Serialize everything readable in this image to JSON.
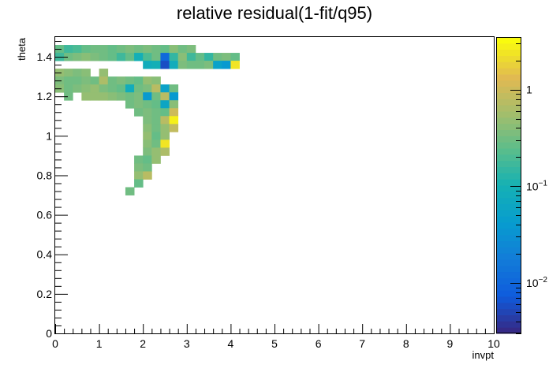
{
  "chart_data": {
    "type": "heatmap",
    "title": "relative residual(1-fit/q95)",
    "xlabel": "invpt",
    "ylabel": "theta",
    "xlim": [
      0,
      10
    ],
    "ylim": [
      0,
      1.5
    ],
    "x_ticks": [
      "0",
      "1",
      "2",
      "3",
      "4",
      "5",
      "6",
      "7",
      "8",
      "9",
      "10"
    ],
    "y_ticks": [
      "0",
      "0.2",
      "0.4",
      "0.6",
      "0.8",
      "1",
      "1.2",
      "1.4"
    ],
    "color_scale": "log",
    "zlim": [
      0.003,
      3.5
    ],
    "colorbar_ticks": [
      {
        "value": 0.01,
        "base": "10",
        "exp": "−2"
      },
      {
        "value": 0.1,
        "base": "10",
        "exp": "−1"
      },
      {
        "value": 1,
        "base": "1",
        "exp": ""
      }
    ],
    "cell_size": {
      "dx": 0.2,
      "dy": 0.04
    },
    "cells": [
      [
        0.0,
        1.42,
        0.25
      ],
      [
        0.2,
        1.42,
        0.18
      ],
      [
        0.4,
        1.42,
        0.2
      ],
      [
        0.6,
        1.42,
        0.25
      ],
      [
        0.8,
        1.42,
        0.3
      ],
      [
        1.0,
        1.42,
        0.3
      ],
      [
        1.2,
        1.42,
        0.25
      ],
      [
        1.4,
        1.42,
        0.3
      ],
      [
        1.6,
        1.42,
        0.35
      ],
      [
        1.8,
        1.42,
        0.3
      ],
      [
        2.0,
        1.42,
        0.35
      ],
      [
        2.2,
        1.42,
        0.3
      ],
      [
        2.4,
        1.42,
        0.25
      ],
      [
        2.6,
        1.42,
        0.4
      ],
      [
        2.8,
        1.42,
        0.3
      ],
      [
        3.0,
        1.42,
        0.35
      ],
      [
        0.0,
        1.38,
        0.18
      ],
      [
        0.2,
        1.38,
        0.3
      ],
      [
        0.4,
        1.38,
        0.35
      ],
      [
        0.6,
        1.38,
        0.4
      ],
      [
        0.8,
        1.38,
        0.35
      ],
      [
        1.0,
        1.38,
        0.3
      ],
      [
        1.2,
        1.38,
        0.25
      ],
      [
        1.4,
        1.38,
        0.18
      ],
      [
        1.6,
        1.38,
        0.25
      ],
      [
        1.8,
        1.38,
        0.1
      ],
      [
        2.0,
        1.38,
        0.2
      ],
      [
        2.2,
        1.38,
        0.3
      ],
      [
        2.4,
        1.38,
        0.01
      ],
      [
        2.6,
        1.38,
        0.15
      ],
      [
        2.8,
        1.38,
        0.4
      ],
      [
        3.0,
        1.38,
        0.18
      ],
      [
        3.2,
        1.38,
        0.25
      ],
      [
        3.4,
        1.38,
        0.15
      ],
      [
        3.6,
        1.38,
        0.3
      ],
      [
        3.8,
        1.38,
        0.35
      ],
      [
        4.0,
        1.38,
        0.25
      ],
      [
        2.0,
        1.34,
        0.08
      ],
      [
        2.2,
        1.34,
        0.1
      ],
      [
        2.4,
        1.34,
        0.006
      ],
      [
        2.6,
        1.34,
        0.08
      ],
      [
        2.8,
        1.34,
        0.35
      ],
      [
        3.0,
        1.34,
        0.3
      ],
      [
        3.2,
        1.34,
        0.3
      ],
      [
        3.4,
        1.34,
        0.35
      ],
      [
        3.6,
        1.34,
        0.05
      ],
      [
        3.8,
        1.34,
        0.04
      ],
      [
        4.0,
        1.34,
        2.5
      ],
      [
        0.0,
        1.3,
        0.5
      ],
      [
        0.2,
        1.3,
        0.4
      ],
      [
        0.4,
        1.3,
        0.35
      ],
      [
        0.6,
        1.3,
        0.4
      ],
      [
        1.0,
        1.3,
        0.5
      ],
      [
        0.0,
        1.26,
        0.35
      ],
      [
        0.2,
        1.26,
        0.3
      ],
      [
        0.4,
        1.26,
        0.3
      ],
      [
        0.6,
        1.26,
        0.35
      ],
      [
        0.8,
        1.26,
        0.3
      ],
      [
        1.0,
        1.26,
        0.6
      ],
      [
        1.2,
        1.26,
        0.3
      ],
      [
        1.4,
        1.26,
        0.35
      ],
      [
        1.6,
        1.26,
        0.3
      ],
      [
        1.8,
        1.26,
        0.25
      ],
      [
        2.0,
        1.26,
        0.5
      ],
      [
        2.2,
        1.26,
        0.4
      ],
      [
        0.0,
        1.22,
        0.4
      ],
      [
        0.2,
        1.22,
        0.3
      ],
      [
        0.4,
        1.22,
        0.35
      ],
      [
        0.6,
        1.22,
        0.4
      ],
      [
        0.8,
        1.22,
        0.45
      ],
      [
        1.0,
        1.22,
        0.35
      ],
      [
        1.2,
        1.22,
        0.3
      ],
      [
        1.4,
        1.22,
        0.25
      ],
      [
        1.6,
        1.22,
        0.08
      ],
      [
        1.8,
        1.22,
        0.3
      ],
      [
        2.0,
        1.22,
        0.35
      ],
      [
        2.2,
        1.22,
        0.7
      ],
      [
        2.4,
        1.22,
        0.05
      ],
      [
        2.6,
        1.22,
        0.3
      ],
      [
        0.2,
        1.18,
        0.3
      ],
      [
        0.6,
        1.18,
        0.5
      ],
      [
        0.8,
        1.18,
        0.45
      ],
      [
        1.0,
        1.18,
        0.5
      ],
      [
        1.2,
        1.18,
        0.4
      ],
      [
        1.4,
        1.18,
        0.35
      ],
      [
        1.6,
        1.18,
        0.3
      ],
      [
        1.8,
        1.18,
        0.35
      ],
      [
        2.0,
        1.18,
        0.04
      ],
      [
        2.2,
        1.18,
        0.3
      ],
      [
        2.4,
        1.18,
        0.8
      ],
      [
        2.6,
        1.18,
        0.04
      ],
      [
        1.6,
        1.14,
        0.3
      ],
      [
        1.8,
        1.14,
        0.35
      ],
      [
        2.0,
        1.14,
        0.3
      ],
      [
        2.2,
        1.14,
        0.25
      ],
      [
        2.4,
        1.14,
        0.06
      ],
      [
        2.6,
        1.14,
        0.4
      ],
      [
        1.8,
        1.1,
        0.3
      ],
      [
        2.0,
        1.1,
        0.35
      ],
      [
        2.2,
        1.1,
        0.3
      ],
      [
        2.4,
        1.1,
        0.25
      ],
      [
        2.6,
        1.1,
        1.0
      ],
      [
        2.0,
        1.06,
        0.35
      ],
      [
        2.2,
        1.06,
        0.3
      ],
      [
        2.4,
        1.06,
        0.8
      ],
      [
        2.6,
        1.06,
        3.0
      ],
      [
        2.0,
        1.02,
        0.4
      ],
      [
        2.2,
        1.02,
        0.3
      ],
      [
        2.4,
        1.02,
        0.5
      ],
      [
        2.6,
        1.02,
        0.9
      ],
      [
        2.0,
        0.98,
        0.45
      ],
      [
        2.2,
        0.98,
        0.25
      ],
      [
        2.4,
        0.98,
        0.5
      ],
      [
        2.0,
        0.94,
        0.4
      ],
      [
        2.2,
        0.94,
        0.3
      ],
      [
        2.4,
        0.94,
        2.5
      ],
      [
        2.0,
        0.9,
        0.35
      ],
      [
        2.2,
        0.9,
        0.45
      ],
      [
        2.4,
        0.9,
        0.6
      ],
      [
        1.8,
        0.86,
        0.3
      ],
      [
        2.0,
        0.86,
        0.25
      ],
      [
        2.2,
        0.86,
        0.45
      ],
      [
        1.8,
        0.82,
        0.35
      ],
      [
        2.0,
        0.82,
        0.3
      ],
      [
        1.8,
        0.78,
        0.45
      ],
      [
        2.0,
        0.78,
        0.8
      ],
      [
        1.8,
        0.74,
        0.25
      ],
      [
        1.6,
        0.7,
        0.3
      ]
    ]
  }
}
